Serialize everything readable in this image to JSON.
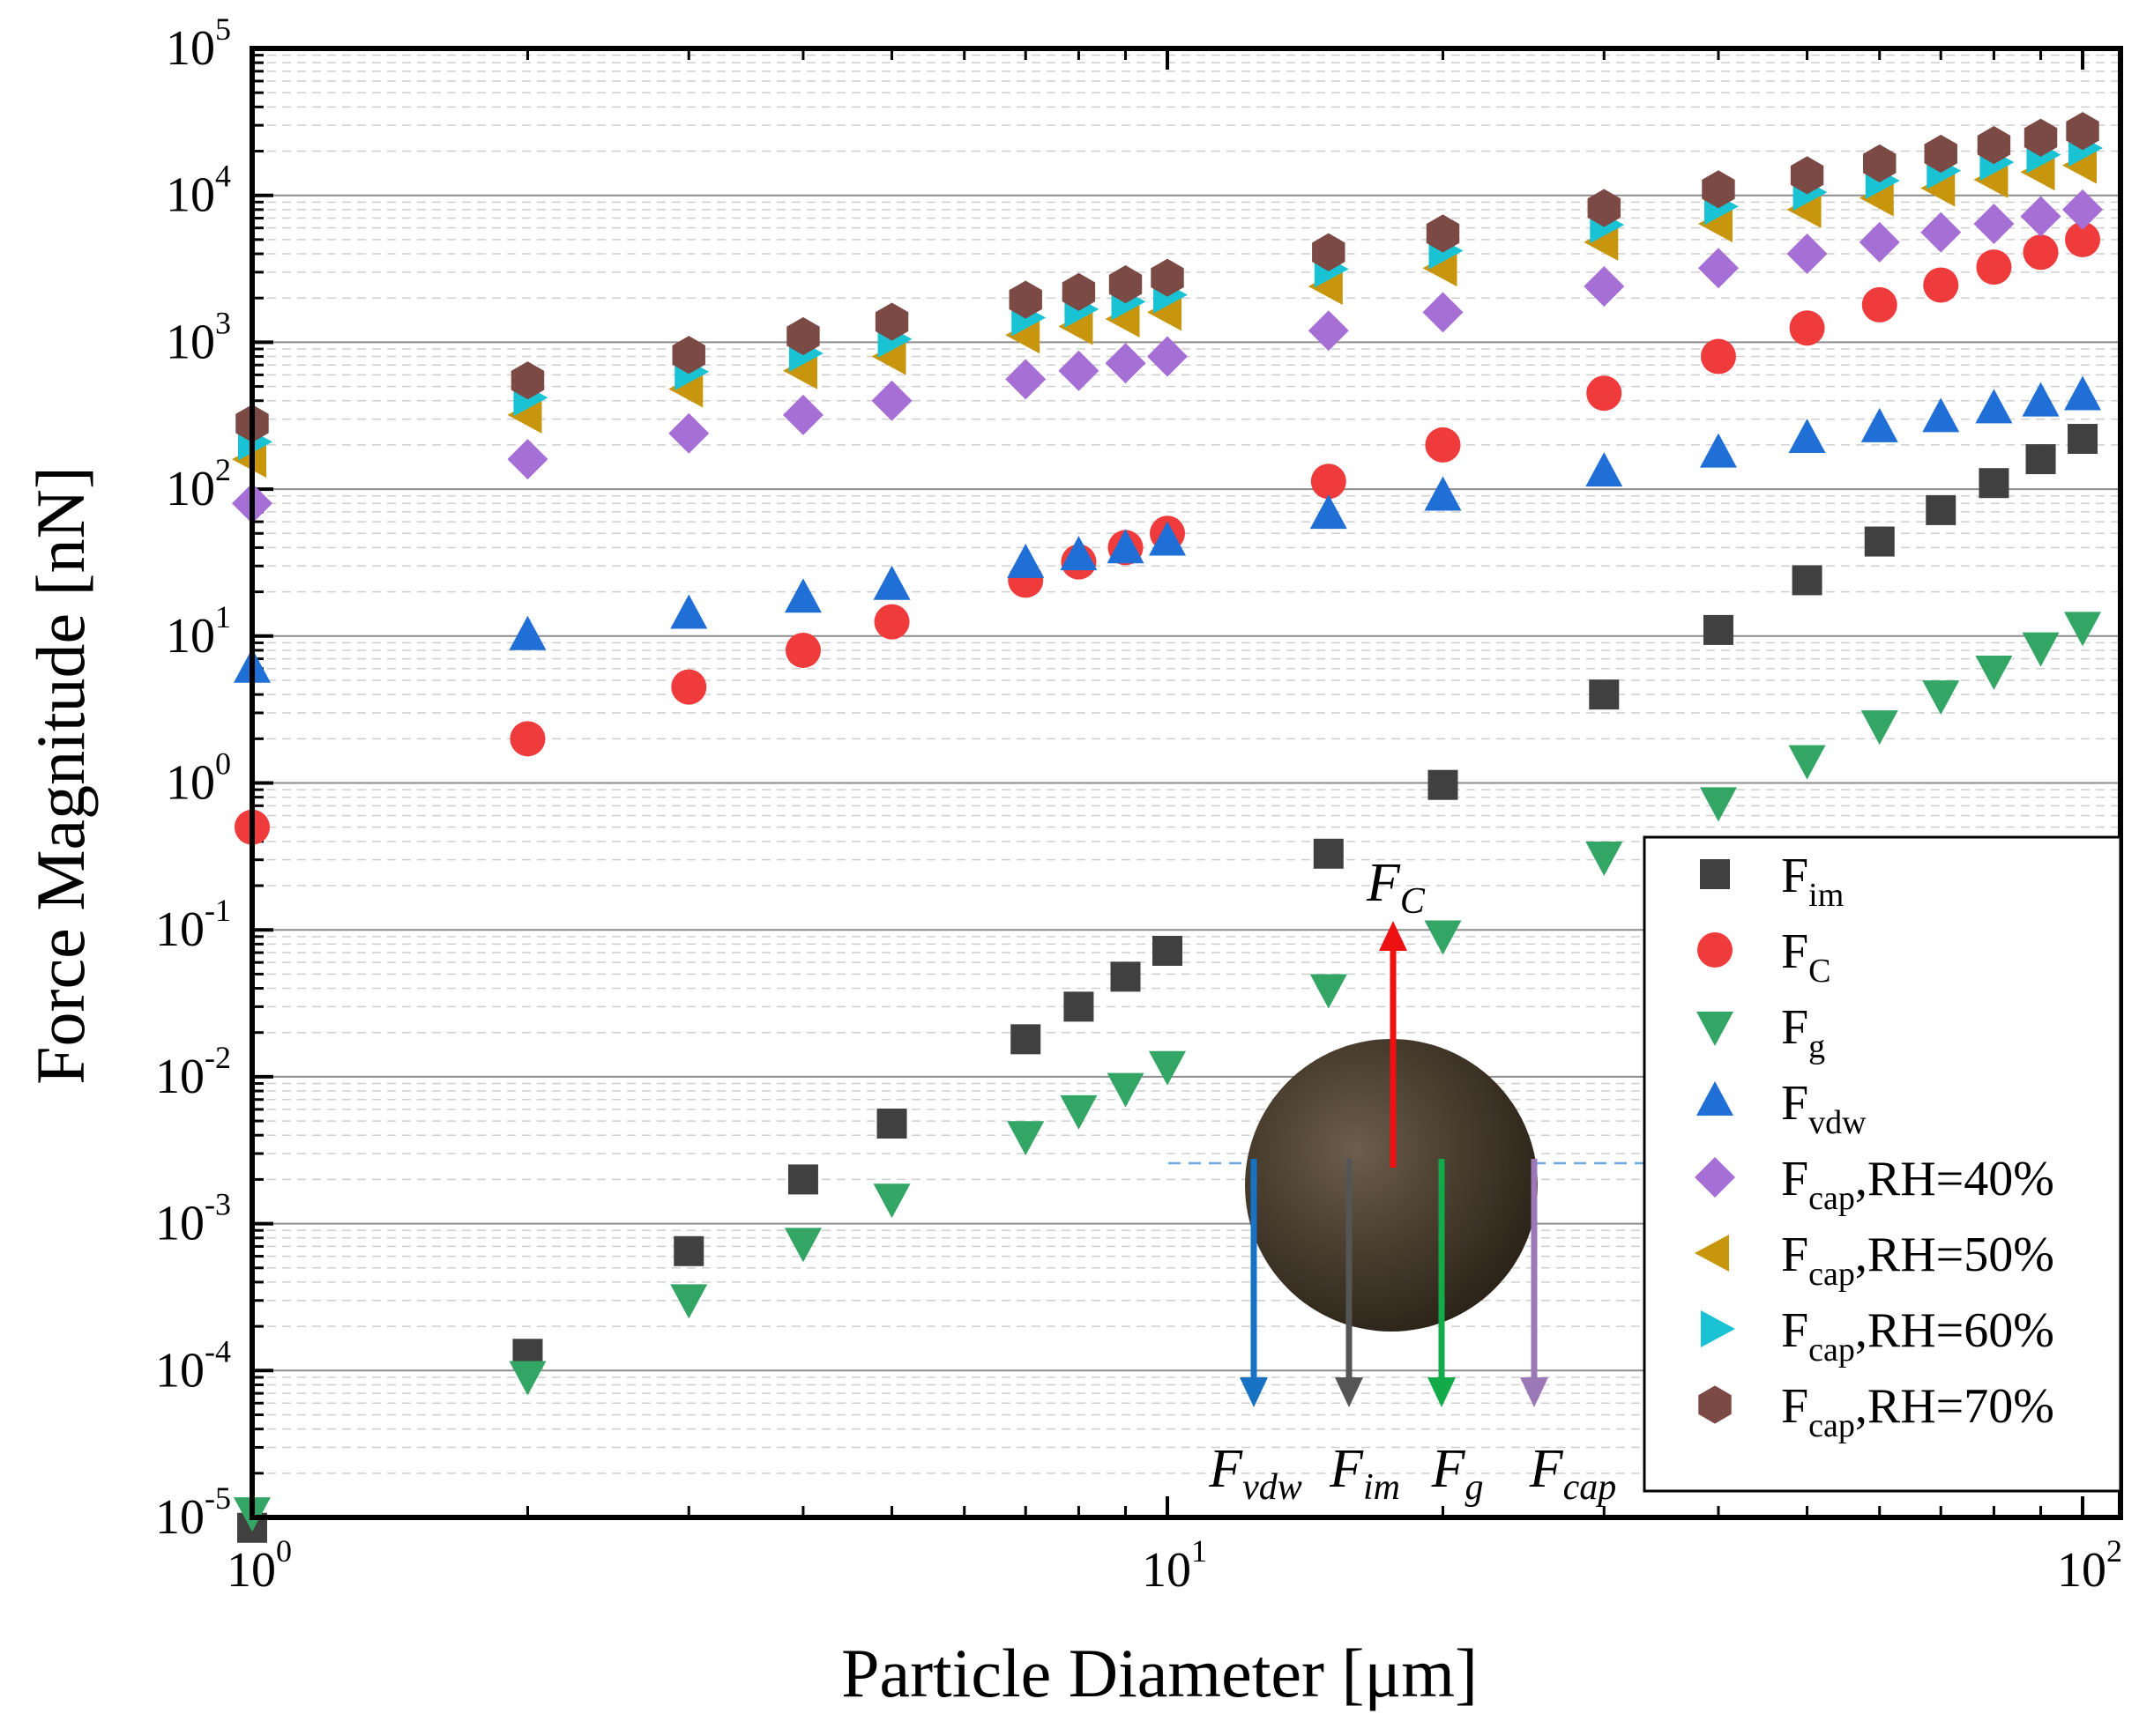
{
  "chart_data": {
    "type": "scatter",
    "xlabel": "Particle Diameter [μm]",
    "ylabel": "Force Magnitude [nN]",
    "xscale": "log",
    "yscale": "log",
    "xlim": [
      1,
      110
    ],
    "ylim": [
      1e-05,
      100000
    ],
    "x_ticks": [
      {
        "base": "10",
        "exp": "0",
        "value": 1
      },
      {
        "base": "10",
        "exp": "1",
        "value": 10
      },
      {
        "base": "10",
        "exp": "2",
        "value": 100
      }
    ],
    "y_ticks": [
      {
        "base": "10",
        "exp": "-5",
        "value": 1e-05
      },
      {
        "base": "10",
        "exp": "-4",
        "value": 0.0001
      },
      {
        "base": "10",
        "exp": "-3",
        "value": 0.001
      },
      {
        "base": "10",
        "exp": "-2",
        "value": 0.01
      },
      {
        "base": "10",
        "exp": "-1",
        "value": 0.1
      },
      {
        "base": "10",
        "exp": "0",
        "value": 1
      },
      {
        "base": "10",
        "exp": "1",
        "value": 10
      },
      {
        "base": "10",
        "exp": "2",
        "value": 100
      },
      {
        "base": "10",
        "exp": "3",
        "value": 1000
      },
      {
        "base": "10",
        "exp": "4",
        "value": 10000
      },
      {
        "base": "10",
        "exp": "5",
        "value": 100000
      }
    ],
    "grid": true,
    "legend_position": "bottom-right",
    "x": [
      1,
      2,
      3,
      4,
      5,
      7,
      8,
      9,
      10,
      15,
      20,
      30,
      40,
      50,
      60,
      70,
      80,
      90,
      100
    ],
    "series": [
      {
        "name": "F",
        "sub": "im",
        "marker": "square",
        "color": "#404040",
        "values": [
          8.5e-06,
          0.00013,
          0.00065,
          0.002,
          0.0048,
          0.018,
          0.03,
          0.048,
          0.072,
          0.33,
          0.97,
          4.0,
          11,
          24,
          44,
          72,
          110,
          160,
          220
        ]
      },
      {
        "name": "F",
        "sub": "C",
        "marker": "circle",
        "color": "#ef3b3b",
        "values": [
          0.5,
          2.0,
          4.5,
          8.0,
          12.5,
          24,
          32,
          40,
          50,
          113,
          200,
          450,
          800,
          1250,
          1800,
          2450,
          3250,
          4100,
          5000
        ]
      },
      {
        "name": "F",
        "sub": "g",
        "marker": "triangle-down",
        "color": "#33a665",
        "values": [
          1.1e-05,
          9.3e-05,
          0.00031,
          0.00075,
          0.0015,
          0.004,
          0.006,
          0.0085,
          0.012,
          0.04,
          0.093,
          0.32,
          0.75,
          1.45,
          2.5,
          4.0,
          5.9,
          8.5,
          11.7
        ]
      },
      {
        "name": "F",
        "sub": "vdw",
        "marker": "triangle-up",
        "color": "#1f6fd6",
        "values": [
          6.0,
          10,
          14,
          18,
          22,
          31,
          35,
          39,
          44,
          67,
          89,
          130,
          175,
          220,
          260,
          305,
          350,
          390,
          430
        ]
      },
      {
        "name": "F",
        "sub": "cap",
        "suffix": ",RH=40%",
        "marker": "diamond",
        "color": "#a66fd6",
        "values": [
          80,
          160,
          240,
          320,
          400,
          560,
          640,
          720,
          800,
          1200,
          1600,
          2400,
          3200,
          4000,
          4800,
          5600,
          6400,
          7200,
          8000
        ]
      },
      {
        "name": "F",
        "sub": "cap",
        "suffix": ",RH=50%",
        "marker": "triangle-left",
        "color": "#c8960c",
        "values": [
          160,
          320,
          480,
          640,
          800,
          1120,
          1280,
          1440,
          1600,
          2400,
          3200,
          4800,
          6400,
          8000,
          9600,
          11200,
          12800,
          14400,
          16000
        ]
      },
      {
        "name": "F",
        "sub": "cap",
        "suffix": ",RH=60%",
        "marker": "triangle-right",
        "color": "#19c3d3",
        "values": [
          210,
          420,
          630,
          840,
          1050,
          1470,
          1680,
          1890,
          2100,
          3150,
          4200,
          6300,
          8400,
          10500,
          12600,
          14700,
          16800,
          18900,
          21000
        ]
      },
      {
        "name": "F",
        "sub": "cap",
        "suffix": ",RH=70%",
        "marker": "hexagon",
        "color": "#7b4a45",
        "values": [
          280,
          550,
          820,
          1100,
          1380,
          1950,
          2200,
          2480,
          2750,
          4100,
          5500,
          8200,
          11000,
          13700,
          16500,
          19200,
          22000,
          24700,
          27400
        ]
      }
    ],
    "annotations": [
      {
        "text": "F",
        "sub": "C",
        "color": "#ee1111"
      },
      {
        "text": "F",
        "sub": "vdw",
        "color": "#1772c4"
      },
      {
        "text": "F",
        "sub": "im",
        "color": "#555555"
      },
      {
        "text": "F",
        "sub": "g",
        "color": "#13ab4a"
      },
      {
        "text": "F",
        "sub": "cap",
        "color": "#9b78b6"
      }
    ]
  }
}
